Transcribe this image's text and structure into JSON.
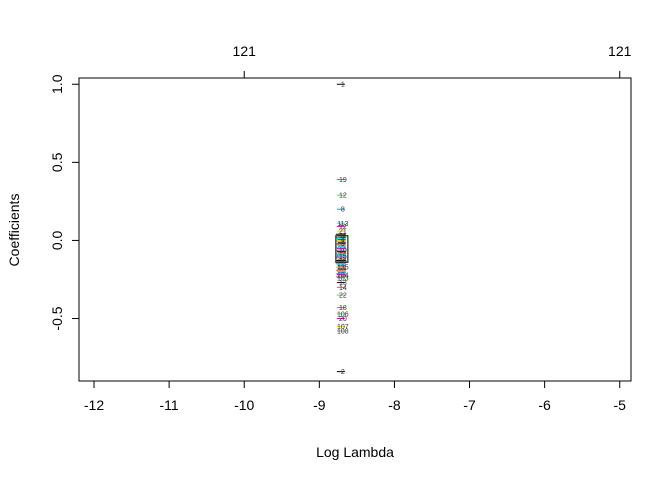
{
  "chart_data": {
    "type": "line",
    "title": "",
    "xlabel": "Log Lambda",
    "ylabel": "Coefficients",
    "xlim": [
      -12.2,
      -4.85
    ],
    "ylim": [
      -0.9,
      1.04
    ],
    "x_ticks": [
      -12,
      -11,
      -10,
      -9,
      -8,
      -7,
      -6,
      -5
    ],
    "x_tick_labels": [
      "-12",
      "-11",
      "-10",
      "-9",
      "-8",
      "-7",
      "-6",
      "-5"
    ],
    "y_ticks": [
      1.0,
      0.5,
      0.0,
      -0.5
    ],
    "y_tick_labels": [
      "1.0",
      "0.5",
      "0.0",
      "-0.5"
    ],
    "top_axis": {
      "ticks": [
        -10,
        -5
      ],
      "labels": [
        "121",
        "121"
      ]
    },
    "grid": false,
    "legend": "none",
    "x_data": -8.7,
    "series": [
      {
        "label": "1",
        "value": 1.0
      },
      {
        "label": "19",
        "value": 0.39
      },
      {
        "label": "12",
        "value": 0.29
      },
      {
        "label": "8",
        "value": 0.2
      },
      {
        "label": "113",
        "value": 0.11
      },
      {
        "label": "12",
        "value": 0.09
      },
      {
        "label": "21",
        "value": 0.06
      },
      {
        "label": "11",
        "value": 0.03
      },
      {
        "label": "4",
        "value": 0.01
      },
      {
        "label": "9",
        "value": -0.02
      },
      {
        "label": "10",
        "value": -0.06
      },
      {
        "label": "15",
        "value": -0.1
      },
      {
        "label": "16",
        "value": -0.13
      },
      {
        "label": "135",
        "value": -0.17
      },
      {
        "label": "104",
        "value": -0.22
      },
      {
        "label": "103",
        "value": -0.24
      },
      {
        "label": "13",
        "value": -0.27
      },
      {
        "label": "14",
        "value": -0.3
      },
      {
        "label": "22",
        "value": -0.35
      },
      {
        "label": "18",
        "value": -0.43
      },
      {
        "label": "106",
        "value": -0.47
      },
      {
        "label": "20",
        "value": -0.5
      },
      {
        "label": "107",
        "value": -0.55
      },
      {
        "label": "108",
        "value": -0.58
      },
      {
        "label": "2",
        "value": -0.84
      }
    ],
    "line_colors": [
      "#000000",
      "#df536b",
      "#61d04f",
      "#2297e6",
      "#28e2e5",
      "#cd0bbc",
      "#f5c710",
      "#9e9e9e"
    ]
  }
}
